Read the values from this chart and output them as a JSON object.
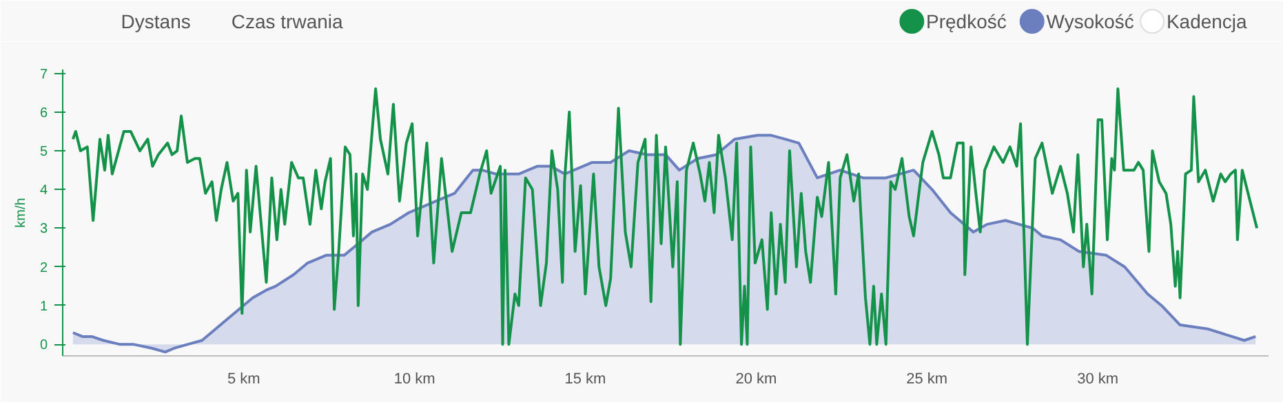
{
  "chart_data": {
    "type": "line",
    "ylabel": "km/h",
    "xlim": [
      -0.3,
      35.0
    ],
    "ylim": [
      -0.3,
      7.1
    ],
    "xticks": [
      {
        "value": 5,
        "label": "5 km"
      },
      {
        "value": 10,
        "label": "10 km"
      },
      {
        "value": 15,
        "label": "15 km"
      },
      {
        "value": 20,
        "label": "20 km"
      },
      {
        "value": 25,
        "label": "25 km"
      },
      {
        "value": 30,
        "label": "30 km"
      }
    ],
    "yticks": [
      0,
      1,
      2,
      3,
      4,
      5,
      6,
      7
    ],
    "grid": false,
    "legend": "top right",
    "tick_labels": "xy",
    "annotations": [
      "Dystans",
      "Czas trwania",
      "Kadencja"
    ],
    "series": [
      {
        "name": "Wysokość",
        "type": "area",
        "color": "#6b7fbf",
        "x": [
          0,
          0.28,
          0.55,
          0.89,
          1.36,
          1.76,
          2.3,
          2.7,
          2.97,
          3.37,
          3.78,
          4.18,
          4.72,
          5.26,
          5.66,
          5.93,
          6.46,
          6.87,
          7.41,
          7.94,
          8.35,
          8.75,
          9.29,
          9.83,
          10.63,
          11.17,
          11.71,
          11.98,
          12.38,
          13.05,
          13.59,
          13.99,
          14.4,
          15.2,
          15.74,
          16.28,
          16.81,
          17.35,
          17.75,
          18.29,
          18.83,
          19.37,
          20.04,
          20.44,
          20.85,
          21.25,
          21.79,
          22.46,
          23.13,
          23.8,
          24.61,
          25.15,
          25.69,
          26.09,
          26.36,
          26.76,
          27.3,
          27.7,
          28.1,
          28.37,
          28.91,
          29.45,
          30.25,
          30.79,
          31.46,
          31.87,
          32.41,
          33.21,
          34.29,
          34.62
        ],
        "values": [
          0.3,
          0.2,
          0.2,
          0.1,
          0.0,
          0.0,
          -0.1,
          -0.2,
          -0.1,
          0.0,
          0.1,
          0.4,
          0.8,
          1.2,
          1.4,
          1.5,
          1.8,
          2.1,
          2.3,
          2.3,
          2.6,
          2.9,
          3.1,
          3.4,
          3.7,
          3.9,
          4.5,
          4.5,
          4.4,
          4.4,
          4.6,
          4.6,
          4.4,
          4.7,
          4.7,
          5.0,
          4.9,
          4.9,
          4.5,
          4.8,
          4.9,
          5.3,
          5.4,
          5.4,
          5.3,
          5.2,
          4.3,
          4.5,
          4.3,
          4.3,
          4.5,
          4.0,
          3.4,
          3.1,
          2.9,
          3.1,
          3.2,
          3.1,
          3.0,
          2.8,
          2.7,
          2.4,
          2.3,
          2.0,
          1.3,
          1.0,
          0.5,
          0.4,
          0.1,
          0.2
        ]
      },
      {
        "name": "Prędkość",
        "color": "#14924a",
        "x": [
          0,
          0.08,
          0.22,
          0.42,
          0.59,
          0.79,
          0.93,
          1.03,
          1.15,
          1.49,
          1.69,
          1.96,
          2.19,
          2.33,
          2.5,
          2.77,
          2.9,
          3.05,
          3.17,
          3.35,
          3.57,
          3.71,
          3.88,
          4.07,
          4.2,
          4.34,
          4.51,
          4.69,
          4.83,
          4.95,
          5.08,
          5.19,
          5.36,
          5.66,
          5.82,
          5.97,
          6.09,
          6.2,
          6.4,
          6.6,
          6.74,
          6.94,
          7.11,
          7.27,
          7.38,
          7.54,
          7.65,
          7.78,
          7.97,
          8.11,
          8.21,
          8.29,
          8.35,
          8.48,
          8.62,
          8.86,
          9.0,
          9.22,
          9.38,
          9.56,
          9.76,
          9.93,
          10.09,
          10.36,
          10.56,
          10.79,
          11.1,
          11.37,
          11.64,
          11.91,
          12.11,
          12.24,
          12.51,
          12.58,
          12.65,
          12.76,
          12.94,
          13.05,
          13.25,
          13.45,
          13.69,
          13.86,
          14.02,
          14.19,
          14.33,
          14.39,
          14.53,
          14.7,
          14.86,
          15.0,
          15.24,
          15.4,
          15.6,
          15.74,
          15.97,
          16.17,
          16.34,
          16.54,
          16.75,
          16.92,
          17.08,
          17.22,
          17.35,
          17.56,
          17.69,
          17.78,
          17.96,
          18.16,
          18.36,
          18.5,
          18.63,
          18.77,
          18.9,
          19.1,
          19.3,
          19.43,
          19.57,
          19.66,
          19.74,
          19.84,
          19.97,
          20.17,
          20.33,
          20.44,
          20.58,
          20.71,
          20.85,
          20.98,
          21.18,
          21.32,
          21.45,
          21.59,
          21.79,
          21.92,
          22.12,
          22.33,
          22.46,
          22.66,
          22.86,
          23.0,
          23.2,
          23.33,
          23.44,
          23.53,
          23.67,
          23.8,
          23.94,
          24.07,
          24.27,
          24.48,
          24.61,
          24.75,
          24.88,
          25.15,
          25.35,
          25.48,
          25.69,
          25.89,
          26.06,
          26.11,
          26.29,
          26.42,
          26.56,
          26.69,
          26.96,
          27.23,
          27.43,
          27.63,
          27.74,
          27.94,
          28.17,
          28.37,
          28.67,
          28.91,
          29.11,
          29.29,
          29.42,
          29.58,
          29.68,
          29.83,
          30.01,
          30.12,
          30.28,
          30.41,
          30.49,
          30.59,
          30.76,
          31.06,
          31.19,
          31.33,
          31.5,
          31.6,
          31.8,
          32.0,
          32.14,
          32.27,
          32.34,
          32.41,
          32.57,
          32.74,
          32.81,
          32.95,
          33.15,
          33.38,
          33.6,
          33.73,
          33.89,
          34.03,
          34.09,
          34.23,
          34.43,
          34.66
        ],
        "values": [
          5.3,
          5.5,
          5.0,
          5.1,
          3.2,
          5.3,
          4.5,
          5.4,
          4.4,
          5.5,
          5.5,
          5.0,
          5.3,
          4.6,
          4.9,
          5.2,
          4.9,
          5.0,
          5.9,
          4.7,
          4.8,
          4.8,
          3.9,
          4.2,
          3.2,
          4.0,
          4.7,
          3.7,
          3.9,
          0.8,
          4.5,
          2.9,
          4.6,
          1.6,
          4.3,
          2.7,
          4.0,
          3.1,
          4.7,
          4.3,
          4.3,
          3.1,
          4.5,
          3.5,
          4.2,
          4.8,
          0.9,
          2.4,
          5.1,
          4.9,
          2.8,
          4.4,
          1.0,
          4.4,
          4.0,
          6.6,
          5.3,
          4.4,
          6.2,
          3.7,
          5.2,
          5.7,
          2.8,
          5.2,
          2.1,
          4.8,
          2.4,
          3.4,
          3.4,
          4.4,
          5.0,
          3.9,
          4.6,
          0.0,
          4.5,
          0.0,
          1.3,
          1.0,
          4.3,
          4.0,
          1.0,
          2.1,
          5.0,
          4.0,
          1.6,
          4.2,
          6.0,
          2.4,
          4.1,
          1.3,
          4.4,
          2.0,
          1.0,
          1.7,
          6.1,
          2.9,
          2.0,
          4.7,
          5.3,
          1.1,
          5.4,
          2.6,
          5.1,
          2.0,
          4.2,
          0.0,
          4.5,
          5.2,
          4.4,
          3.7,
          4.7,
          3.4,
          5.4,
          4.3,
          2.7,
          5.2,
          0.0,
          1.5,
          0.0,
          5.1,
          2.1,
          2.7,
          0.9,
          3.4,
          1.3,
          3.1,
          1.6,
          5.0,
          2.0,
          3.9,
          2.4,
          1.6,
          3.8,
          3.3,
          4.7,
          1.3,
          4.3,
          4.9,
          3.7,
          4.4,
          1.2,
          0.0,
          1.5,
          0.0,
          1.3,
          0.0,
          4.2,
          4.0,
          4.8,
          3.3,
          2.8,
          3.8,
          4.7,
          5.5,
          4.9,
          4.3,
          4.3,
          5.2,
          5.2,
          1.8,
          5.1,
          4.0,
          2.9,
          4.5,
          5.1,
          4.7,
          5.1,
          4.6,
          5.7,
          0.0,
          4.8,
          5.2,
          3.9,
          4.6,
          3.9,
          2.9,
          4.9,
          2.0,
          3.1,
          1.3,
          5.8,
          5.8,
          2.7,
          4.8,
          4.5,
          6.6,
          4.5,
          4.5,
          4.7,
          4.5,
          2.4,
          5.0,
          4.2,
          3.9,
          3.1,
          1.5,
          2.4,
          1.2,
          4.4,
          4.5,
          6.4,
          4.2,
          4.5,
          3.7,
          4.4,
          4.2,
          4.4,
          4.5,
          2.7,
          4.5,
          3.8,
          3.0
        ]
      }
    ]
  }
}
